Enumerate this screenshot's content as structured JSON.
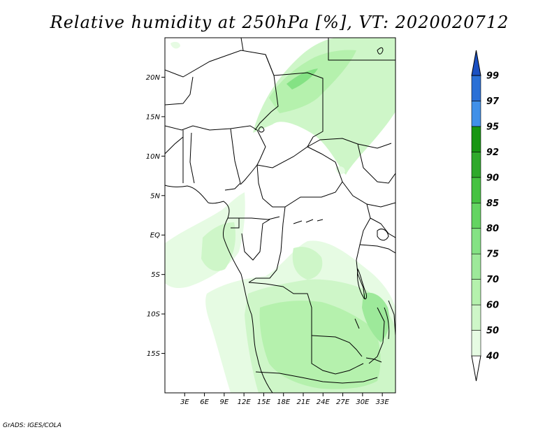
{
  "title": "Relative humidity at 250hPa [%], VT: 2020020712",
  "credit": "GrADS: IGES/COLA",
  "map": {
    "lon_range": [
      0,
      35
    ],
    "lat_range": [
      -20,
      25
    ],
    "lon_ticks": [
      {
        "value": 3,
        "label": "3E"
      },
      {
        "value": 6,
        "label": "6E"
      },
      {
        "value": 9,
        "label": "9E"
      },
      {
        "value": 12,
        "label": "12E"
      },
      {
        "value": 15,
        "label": "15E"
      },
      {
        "value": 18,
        "label": "18E"
      },
      {
        "value": 21,
        "label": "21E"
      },
      {
        "value": 24,
        "label": "24E"
      },
      {
        "value": 27,
        "label": "27E"
      },
      {
        "value": 30,
        "label": "30E"
      },
      {
        "value": 33,
        "label": "33E"
      }
    ],
    "lat_ticks": [
      {
        "value": 20,
        "label": "20N"
      },
      {
        "value": 15,
        "label": "15N"
      },
      {
        "value": 10,
        "label": "10N"
      },
      {
        "value": 5,
        "label": "5N"
      },
      {
        "value": 0,
        "label": "EQ"
      },
      {
        "value": -5,
        "label": "5S"
      },
      {
        "value": -10,
        "label": "10S"
      },
      {
        "value": -15,
        "label": "15S"
      }
    ]
  },
  "colorbar": {
    "levels": [
      "40",
      "50",
      "60",
      "70",
      "75",
      "80",
      "85",
      "90",
      "92",
      "95",
      "97",
      "99"
    ],
    "colors": [
      "#ffffff",
      "#e6fbe3",
      "#cef6c8",
      "#b5f1ad",
      "#9de99a",
      "#84e284",
      "#64d462",
      "#46c242",
      "#2fa92b",
      "#179612",
      "#4090e8",
      "#2a70d6",
      "#1b50c2"
    ]
  }
}
